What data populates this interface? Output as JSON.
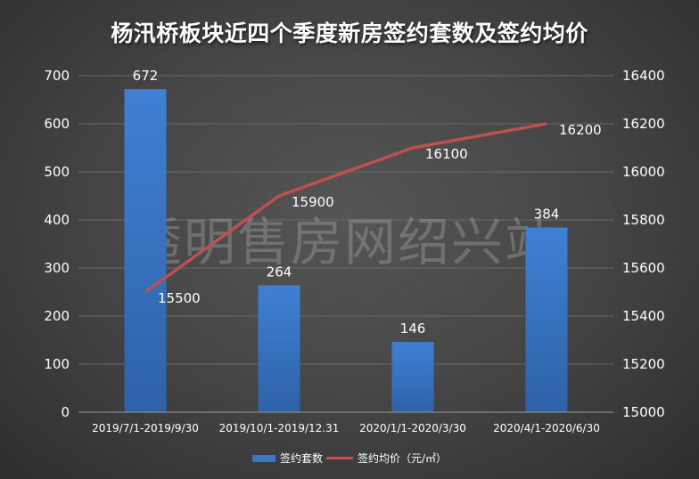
{
  "title": "杨汛桥板块近四个季度新房签约套数及签约均价",
  "watermark": "透明售房网绍兴站",
  "colors": {
    "bar": "#3a78c9",
    "line": "#c0504d",
    "background": "#474747",
    "grid": "#6a6a6a"
  },
  "legend": [
    {
      "label": "签约套数",
      "type": "bar"
    },
    {
      "label": "签约均价（元/㎡）",
      "type": "line"
    }
  ],
  "chart_data": {
    "type": "bar+line",
    "title": "杨汛桥板块近四个季度新房签约套数及签约均价",
    "categories": [
      "2019/7/1-2019/9/30",
      "2019/10/1-2019/12.31",
      "2020/1/1-2020/3/30",
      "2020/4/1-2020/6/30"
    ],
    "series": [
      {
        "name": "签约套数",
        "type": "bar",
        "axis": "left",
        "values": [
          672,
          264,
          146,
          384
        ]
      },
      {
        "name": "签约均价（元/㎡）",
        "type": "line",
        "axis": "right",
        "values": [
          15500,
          15900,
          16100,
          16200
        ]
      }
    ],
    "y_left": {
      "min": 0,
      "max": 700,
      "ticks": [
        0,
        100,
        200,
        300,
        400,
        500,
        600,
        700
      ]
    },
    "y_right": {
      "min": 15000,
      "max": 16400,
      "ticks": [
        15000,
        15200,
        15400,
        15600,
        15800,
        16000,
        16200,
        16400
      ]
    },
    "grid": true,
    "legend_position": "bottom"
  }
}
